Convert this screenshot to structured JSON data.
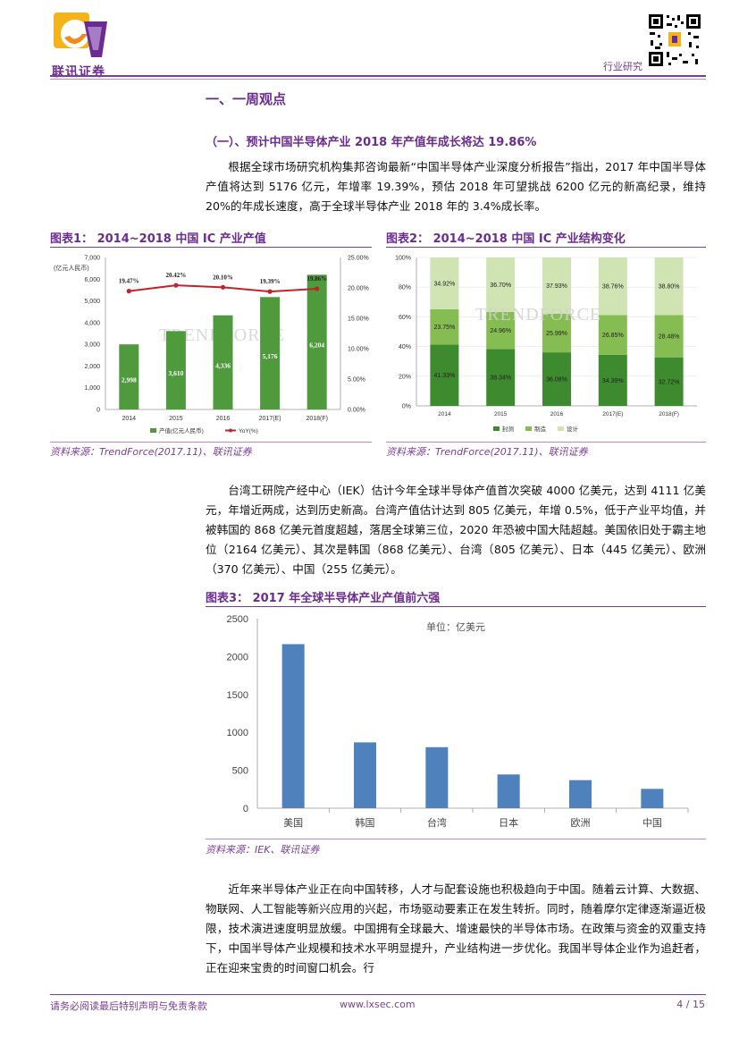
{
  "header": {
    "logo_text": "联讯证券",
    "label": "行业研究",
    "accent": "#7a3d96"
  },
  "section": {
    "title": "一、一周观点",
    "subtitle": "（一）、预计中国半导体产业 2018 年产值年成长将达 19.86%"
  },
  "paragraphs": {
    "p1": "根据全球市场研究机构集邦咨询最新“中国半导体产业深度分析报告”指出，2017 年中国半导体产值将达到 5176 亿元，年增率 19.39%，预估 2018 年可望挑战 6200 亿元的新高纪录，维持 20%的年成长速度，高于全球半导体产业 2018 年的 3.4%成长率。",
    "p2": "台湾工研院产经中心（IEK）估计今年全球半导体产值首次突破 4000 亿美元，达到 4111 亿美元，年增近两成，达到历史新高。台湾产值估计达到 805 亿美元，年增 0.5%，低于产业平均值，并被韩国的 868 亿美元首度超越，落居全球第三位，2020 年恐被中国大陆超越。美国依旧处于霸主地位（2164 亿美元）、其次是韩国（868 亿美元）、台湾（805 亿美元）、日本（445 亿美元）、欧洲（370 亿美元）、中国（255 亿美元）。",
    "p3": "近年来半导体产业正在向中国转移，人才与配套设施也积极趋向于中国。随着云计算、大数据、物联网、人工智能等新兴应用的兴起，市场驱动要素正在发生转折。同时，随着摩尔定律逐渐逼近极限，技术演进速度明显放缓。中国拥有全球最大、增速最快的半导体市场。在政策与资金的双重支持下，中国半导体产业规模和技术水平明显提升，产业结构进一步优化。我国半导体企业作为追赶者，正在迎来宝贵的时间窗口机会。行"
  },
  "figures": {
    "fig1_title": "图表1：  2014~2018 中国 IC 产业产值",
    "fig2_title": "图表2：  2014~2018 中国 IC 产业结构变化",
    "fig3_title": "图表3：  2017 年全球半导体产业产值前六强",
    "source_trendforce": "资料来源：TrendForce(2017.11)、联讯证券",
    "source_iek": "资料来源：IEK、联讯证券",
    "watermark": "TRENDFORCE"
  },
  "chart_data": [
    {
      "type": "bar",
      "title": "2014~2018 中国 IC 产业产值",
      "categories": [
        "2014",
        "2015",
        "2016",
        "2017(E)",
        "2018(F)"
      ],
      "series": [
        {
          "name": "产值(亿元人民币)",
          "values": [
            2998,
            3610,
            4336,
            5176,
            6204
          ],
          "labels": [
            "2,998",
            "3,610",
            "4,336",
            "5,176",
            "6,204"
          ],
          "color": "#4f9a3c"
        },
        {
          "name": "YoY(%)",
          "type": "line",
          "values": [
            19.47,
            20.42,
            20.1,
            19.39,
            19.86
          ],
          "labels": [
            "19.47%",
            "20.42%",
            "20.10%",
            "19.39%",
            "19.86%"
          ],
          "color": "#c0242b"
        }
      ],
      "ylabel": "(亿元人民币)",
      "ylim": [
        0,
        7000
      ],
      "yticks": [
        "0",
        "1,000",
        "2,000",
        "3,000",
        "4,000",
        "5,000",
        "6,000",
        "7,000"
      ],
      "y2lim": [
        0,
        25
      ],
      "y2ticks": [
        "0.00%",
        "5.00%",
        "10.00%",
        "15.00%",
        "20.00%",
        "25.00%"
      ]
    },
    {
      "type": "bar",
      "stacked": true,
      "title": "2014~2018 中国 IC 产业结构变化",
      "categories": [
        "2014",
        "2015",
        "2016",
        "2017(E)",
        "2018(F)"
      ],
      "series": [
        {
          "name": "封测",
          "values": [
            41.33,
            38.34,
            36.08,
            34.39,
            32.72
          ],
          "labels": [
            "41.33%",
            "38.34%",
            "36.08%",
            "34.39%",
            "32.72%"
          ],
          "color": "#3d8a2f"
        },
        {
          "name": "制造",
          "values": [
            23.75,
            24.96,
            25.99,
            26.85,
            28.48
          ],
          "labels": [
            "23.75%",
            "24.96%",
            "25.99%",
            "26.85%",
            "28.48%"
          ],
          "color": "#86bd52"
        },
        {
          "name": "设计",
          "values": [
            34.92,
            36.7,
            37.93,
            38.76,
            38.8
          ],
          "labels": [
            "34.92%",
            "36.70%",
            "37.93%",
            "38.76%",
            "38.80%"
          ],
          "color": "#cfe3b3"
        }
      ],
      "ylim": [
        0,
        100
      ],
      "yticks": [
        "0%",
        "20%",
        "40%",
        "60%",
        "80%",
        "100%"
      ]
    },
    {
      "type": "bar",
      "title": "2017 年全球半导体产业产值前六强",
      "categories": [
        "美国",
        "韩国",
        "台湾",
        "日本",
        "欧洲",
        "中国"
      ],
      "values": [
        2164,
        868,
        805,
        445,
        370,
        255
      ],
      "unit_note": "单位：亿美元",
      "color": "#4f81bd",
      "ylim": [
        0,
        2500
      ],
      "yticks": [
        "0",
        "500",
        "1000",
        "1500",
        "2000",
        "2500"
      ]
    }
  ],
  "footer": {
    "disclaimer": "请务必阅读最后特别声明与免责条款",
    "url": "www.lxsec.com",
    "page": "4 / 15"
  }
}
